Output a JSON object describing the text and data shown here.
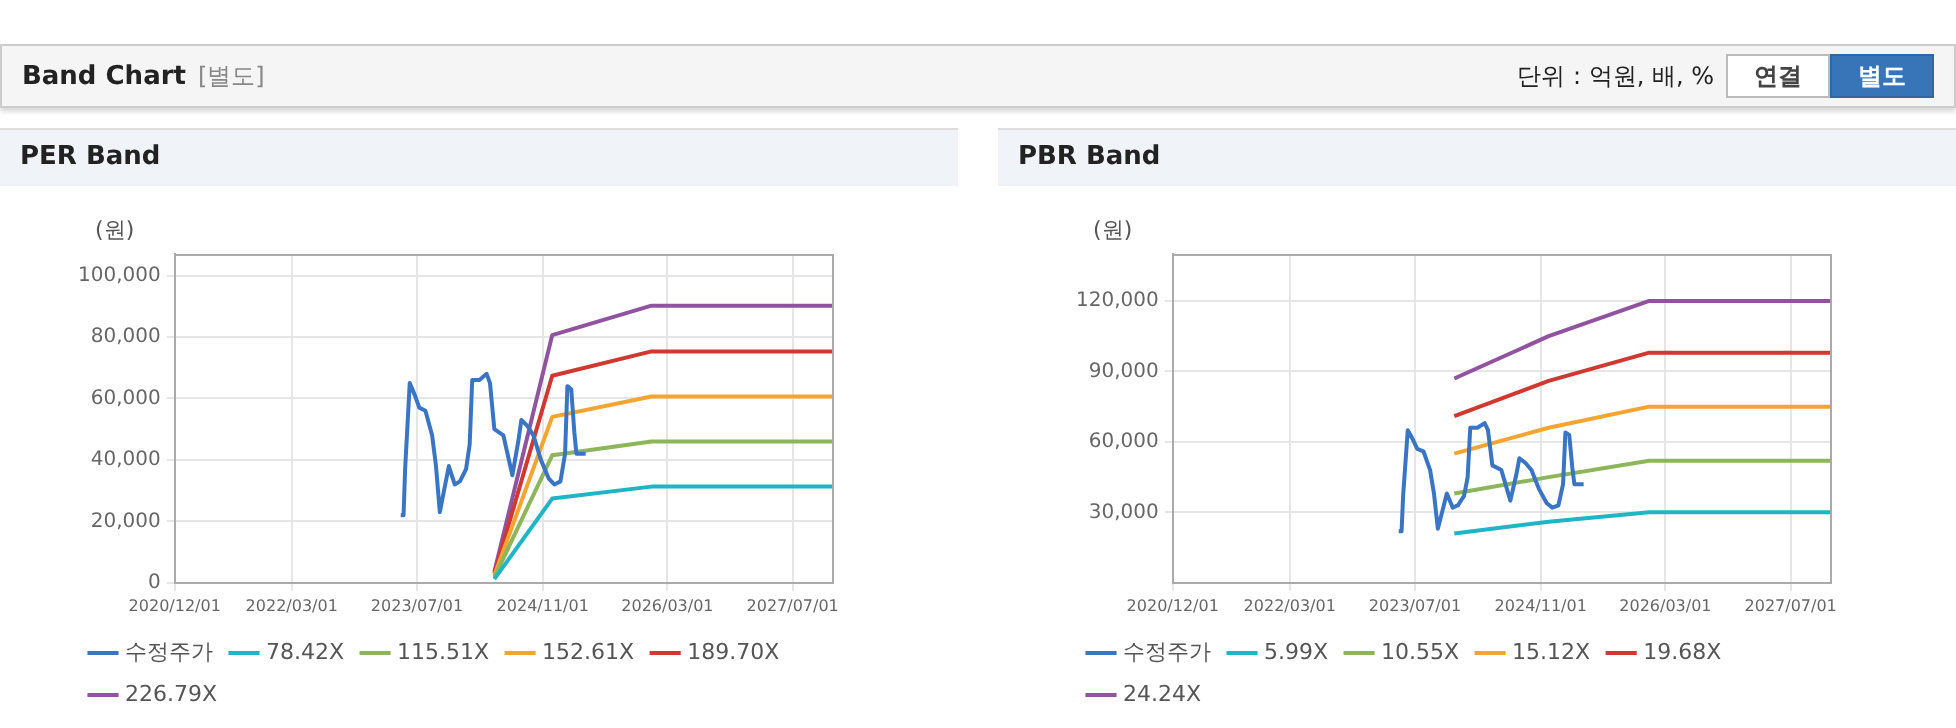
{
  "chart_data": [
    {
      "type": "other",
      "title": "Band Chart",
      "subtitle": "[별도]",
      "annotations": [
        "단위 : 억원, 배, %",
        "연결",
        "별도"
      ]
    },
    {
      "type": "line",
      "title": "PER Band",
      "ylabel": "(원)",
      "xlim": [
        "2020-12-01",
        "2027-12-01"
      ],
      "ylim": [
        0,
        107000
      ],
      "xticks": [
        {
          "value": "2020-12-01",
          "label": "2020/12/01"
        },
        {
          "value": "2022-03-01",
          "label": "2022/03/01"
        },
        {
          "value": "2023-07-01",
          "label": "2023/07/01"
        },
        {
          "value": "2024-11-01",
          "label": "2024/11/01"
        },
        {
          "value": "2026-03-01",
          "label": "2026/03/01"
        },
        {
          "value": "2027-07-01",
          "label": "2027/07/01"
        }
      ],
      "yticks": [
        {
          "value": 0,
          "label": "0"
        },
        {
          "value": 20000,
          "label": "20,000"
        },
        {
          "value": 40000,
          "label": "40,000"
        },
        {
          "value": 60000,
          "label": "60,000"
        },
        {
          "value": 80000,
          "label": "80,000"
        },
        {
          "value": 100000,
          "label": "100,000"
        }
      ],
      "grid": true,
      "legend": "bottom",
      "marker": "none",
      "line_style": "solid",
      "series": [
        {
          "name": "수정주가",
          "color": "#3a75c4",
          "x": [
            "2023-04-29",
            "2023-05-10",
            "2023-05-16",
            "2023-05-25",
            "2023-06-03",
            "2023-06-23",
            "2023-07-10",
            "2023-08-03",
            "2023-08-29",
            "2023-09-13",
            "2023-09-28",
            "2023-10-12",
            "2023-11-02",
            "2023-11-25",
            "2023-12-15",
            "2024-01-08",
            "2024-01-22",
            "2024-02-01",
            "2024-02-29",
            "2024-03-28",
            "2024-04-10",
            "2024-04-27",
            "2024-06-01",
            "2024-07-06",
            "2024-07-29",
            "2024-08-10",
            "2024-09-03",
            "2024-09-26",
            "2024-10-25",
            "2024-11-24",
            "2024-12-16",
            "2025-01-09",
            "2025-01-27",
            "2025-02-05",
            "2025-02-20",
            "2025-03-04",
            "2025-03-12",
            "2025-04-17"
          ],
          "values": [
            22000,
            22000,
            37000,
            51000,
            65000,
            61000,
            57000,
            56000,
            48000,
            38000,
            23000,
            29000,
            38000,
            32000,
            33000,
            37000,
            45000,
            66000,
            66000,
            68000,
            65000,
            50000,
            48000,
            35000,
            46000,
            53000,
            51000,
            48000,
            40000,
            34000,
            32000,
            33000,
            42000,
            64000,
            63000,
            49000,
            42000,
            42000
          ]
        },
        {
          "name": "78.42X",
          "color": "#1fb5c5",
          "x": [
            "2024-04-27",
            "2024-12-08",
            "2025-12-29",
            "2027-12-01"
          ],
          "values": [
            1200,
            27400,
            31300,
            31300
          ]
        },
        {
          "name": "115.51X",
          "color": "#8db65a",
          "x": [
            "2024-04-27",
            "2024-12-08",
            "2025-12-29",
            "2027-12-01"
          ],
          "values": [
            1800,
            41500,
            46000,
            46000
          ]
        },
        {
          "name": "152.61X",
          "color": "#f5a431",
          "x": [
            "2024-04-27",
            "2024-12-08",
            "2025-12-29",
            "2027-12-01"
          ],
          "values": [
            2400,
            54000,
            60600,
            60600
          ]
        },
        {
          "name": "189.70X",
          "color": "#d0392f",
          "x": [
            "2024-04-27",
            "2024-12-08",
            "2025-12-29",
            "2027-12-01"
          ],
          "values": [
            3000,
            67400,
            75300,
            75300
          ]
        },
        {
          "name": "226.79X",
          "color": "#9153a0",
          "x": [
            "2024-04-27",
            "2024-12-08",
            "2025-12-29",
            "2027-12-01"
          ],
          "values": [
            3600,
            80600,
            90200,
            90200
          ]
        }
      ]
    },
    {
      "type": "line",
      "title": "PBR Band",
      "ylabel": "(원)",
      "xlim": [
        "2020-12-01",
        "2027-12-01"
      ],
      "ylim": [
        0,
        140000
      ],
      "xticks": [
        {
          "value": "2020-12-01",
          "label": "2020/12/01"
        },
        {
          "value": "2022-03-01",
          "label": "2022/03/01"
        },
        {
          "value": "2023-07-01",
          "label": "2023/07/01"
        },
        {
          "value": "2024-11-01",
          "label": "2024/11/01"
        },
        {
          "value": "2026-03-01",
          "label": "2026/03/01"
        },
        {
          "value": "2027-07-01",
          "label": "2027/07/01"
        }
      ],
      "yticks": [
        {
          "value": 30000,
          "label": "30,000"
        },
        {
          "value": 60000,
          "label": "60,000"
        },
        {
          "value": 90000,
          "label": "90,000"
        },
        {
          "value": 120000,
          "label": "120,000"
        }
      ],
      "grid": true,
      "legend": "bottom",
      "marker": "none",
      "line_style": "solid",
      "series": [
        {
          "name": "수정주가",
          "color": "#3a75c4",
          "x": [
            "2023-04-29",
            "2023-05-10",
            "2023-05-16",
            "2023-05-25",
            "2023-06-03",
            "2023-06-23",
            "2023-07-10",
            "2023-08-03",
            "2023-08-29",
            "2023-09-13",
            "2023-09-28",
            "2023-10-12",
            "2023-11-02",
            "2023-11-25",
            "2023-12-15",
            "2024-01-08",
            "2024-01-22",
            "2024-02-01",
            "2024-02-29",
            "2024-03-28",
            "2024-04-10",
            "2024-04-27",
            "2024-06-01",
            "2024-07-06",
            "2024-07-29",
            "2024-08-10",
            "2024-09-03",
            "2024-09-26",
            "2024-10-25",
            "2024-11-24",
            "2024-12-16",
            "2025-01-09",
            "2025-01-27",
            "2025-02-05",
            "2025-02-20",
            "2025-03-04",
            "2025-03-12",
            "2025-04-17"
          ],
          "values": [
            22000,
            22000,
            37000,
            51000,
            65000,
            61000,
            57000,
            56000,
            48000,
            38000,
            23000,
            29000,
            38000,
            32000,
            33000,
            37000,
            45000,
            66000,
            66000,
            68000,
            65000,
            50000,
            48000,
            35000,
            46000,
            53000,
            51000,
            48000,
            40000,
            34000,
            32000,
            33000,
            42000,
            64000,
            63000,
            49000,
            42000,
            42000
          ]
        },
        {
          "name": "5.99X",
          "color": "#1fb5c5",
          "x": [
            "2023-12-01",
            "2024-12-02",
            "2025-12-28",
            "2027-12-01"
          ],
          "values": [
            21000,
            26000,
            30000,
            30000
          ]
        },
        {
          "name": "10.55X",
          "color": "#8db65a",
          "x": [
            "2023-12-01",
            "2024-12-02",
            "2025-12-28",
            "2027-12-01"
          ],
          "values": [
            38000,
            45000,
            52000,
            52000
          ]
        },
        {
          "name": "15.12X",
          "color": "#f5a431",
          "x": [
            "2023-12-01",
            "2024-12-02",
            "2025-12-28",
            "2027-12-01"
          ],
          "values": [
            55000,
            66000,
            75000,
            75000
          ]
        },
        {
          "name": "19.68X",
          "color": "#d0392f",
          "x": [
            "2023-12-01",
            "2024-12-02",
            "2025-12-28",
            "2027-12-01"
          ],
          "values": [
            71000,
            86000,
            98000,
            98000
          ]
        },
        {
          "name": "24.24X",
          "color": "#9153a0",
          "x": [
            "2023-12-01",
            "2024-12-02",
            "2025-12-28",
            "2027-12-01"
          ],
          "values": [
            87000,
            105000,
            120000,
            120000
          ]
        }
      ]
    }
  ]
}
